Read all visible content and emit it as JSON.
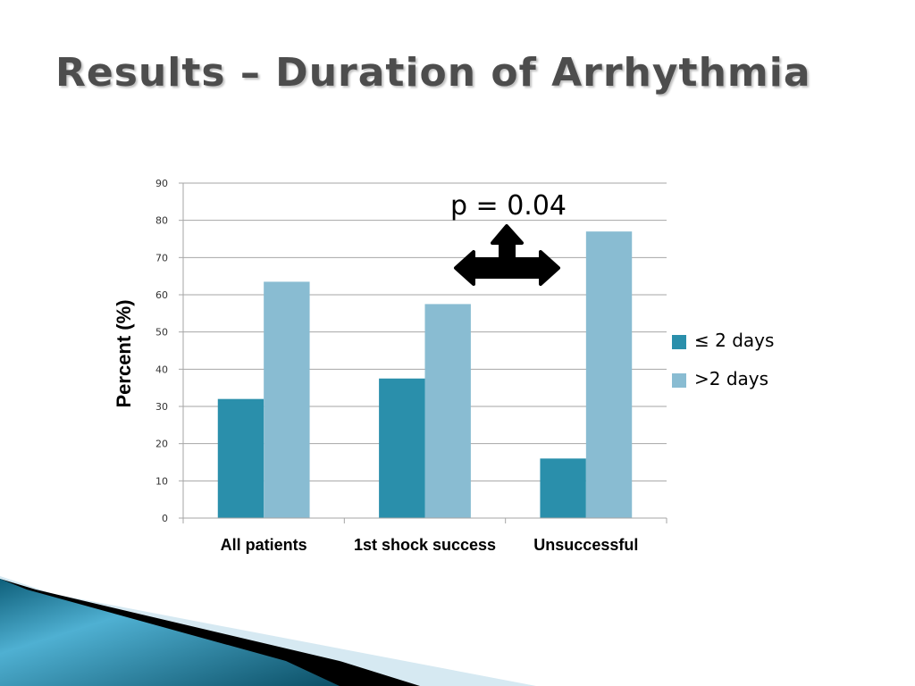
{
  "slide": {
    "title": "Results – Duration of Arrhythmia"
  },
  "colors": {
    "series_le2": "#2a8fab",
    "series_gt2": "#89bcd2",
    "gridline": "#a6a6a6",
    "title_text": "#4d4d4d",
    "arrow": "#000000"
  },
  "chart_data": {
    "type": "bar",
    "title": "",
    "xlabel": "",
    "ylabel": "Percent (%)",
    "ylim": [
      0,
      90
    ],
    "yticks": [
      0,
      10,
      20,
      30,
      40,
      50,
      60,
      70,
      80,
      90
    ],
    "grid": true,
    "legend_position": "right",
    "categories": [
      "All patients",
      "1st shock success",
      "Unsuccessful"
    ],
    "series": [
      {
        "name": "≤ 2 days",
        "values": [
          32,
          37.5,
          16
        ]
      },
      {
        "name": ">2 days",
        "values": [
          63.5,
          57.5,
          77
        ]
      }
    ],
    "annotations": [
      {
        "text": "p = 0.04",
        "between_categories": [
          "1st shock success",
          "Unsuccessful"
        ]
      }
    ]
  }
}
